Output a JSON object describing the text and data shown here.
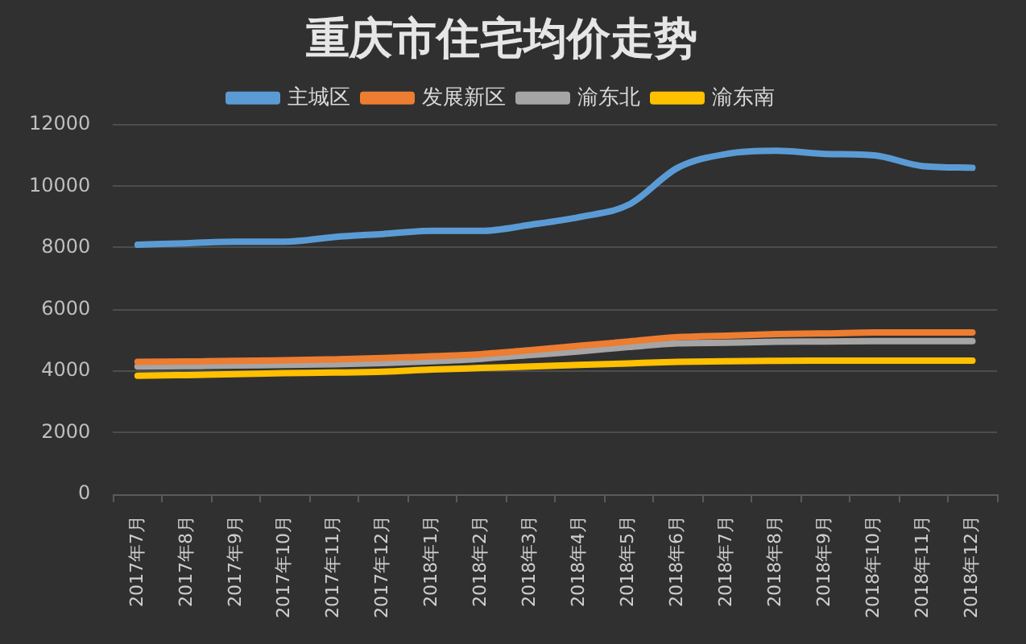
{
  "chart_data": {
    "type": "line",
    "title": "重庆市住宅均价走势",
    "categories": [
      "2017年7月",
      "2017年8月",
      "2017年9月",
      "2017年10月",
      "2017年11月",
      "2017年12月",
      "2018年1月",
      "2018年2月",
      "2018年3月",
      "2018年4月",
      "2018年5月",
      "2018年6月",
      "2018年7月",
      "2018年8月",
      "2018年9月",
      "2018年10月",
      "2018年11月",
      "2018年12月"
    ],
    "series": [
      {
        "name": "主城区",
        "color": "#5b9bd5",
        "values": [
          8100,
          8150,
          8200,
          8200,
          8350,
          8450,
          8550,
          8550,
          8750,
          9000,
          9400,
          10600,
          11050,
          11150,
          11050,
          11000,
          10650,
          10600
        ]
      },
      {
        "name": "发展新区",
        "color": "#ed7d31",
        "values": [
          4300,
          4310,
          4330,
          4350,
          4380,
          4420,
          4480,
          4550,
          4680,
          4820,
          4960,
          5100,
          5150,
          5200,
          5220,
          5250,
          5250,
          5250
        ]
      },
      {
        "name": "渝东北",
        "color": "#a5a5a5",
        "values": [
          4150,
          4160,
          4180,
          4200,
          4220,
          4260,
          4320,
          4400,
          4520,
          4640,
          4780,
          4900,
          4920,
          4950,
          4960,
          4970,
          4970,
          4970
        ]
      },
      {
        "name": "渝东南",
        "color": "#ffc000",
        "values": [
          3850,
          3870,
          3900,
          3930,
          3950,
          3980,
          4050,
          4100,
          4150,
          4200,
          4250,
          4300,
          4320,
          4330,
          4340,
          4340,
          4340,
          4340
        ]
      }
    ],
    "ylim": [
      0,
      12000
    ],
    "yticks": [
      0,
      2000,
      4000,
      6000,
      8000,
      10000,
      12000
    ],
    "grid": "y",
    "legend": "top",
    "marker": "none",
    "line_style": "solid"
  }
}
